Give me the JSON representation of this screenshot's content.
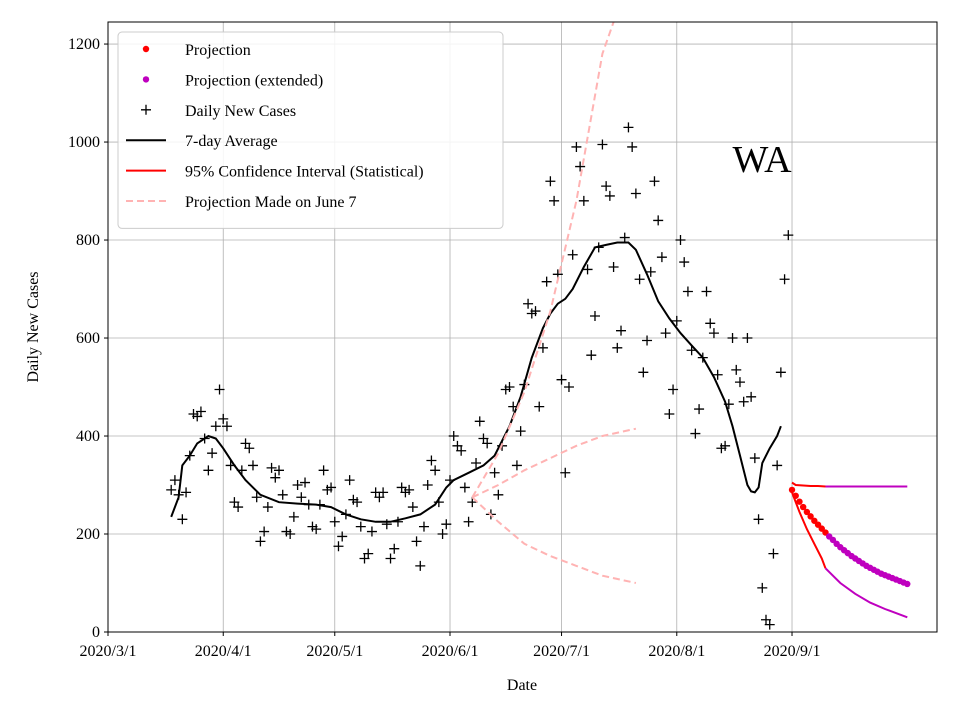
{
  "chart_data": {
    "type": "line",
    "xlabel": "Date",
    "ylabel": "Daily New Cases",
    "annotation": "WA",
    "xlim": [
      "2020-03-01",
      "2020-10-10"
    ],
    "xticks": [
      {
        "value": "2020-03-01",
        "label": "2020/3/1"
      },
      {
        "value": "2020-04-01",
        "label": "2020/4/1"
      },
      {
        "value": "2020-05-01",
        "label": "2020/5/1"
      },
      {
        "value": "2020-06-01",
        "label": "2020/6/1"
      },
      {
        "value": "2020-07-01",
        "label": "2020/7/1"
      },
      {
        "value": "2020-08-01",
        "label": "2020/8/1"
      },
      {
        "value": "2020-09-01",
        "label": "2020/9/1"
      }
    ],
    "ylim": [
      0,
      1245
    ],
    "yticks": [
      0,
      200,
      400,
      600,
      800,
      1000,
      1200
    ],
    "grid": true,
    "legend": "upper left",
    "series": [
      {
        "name": "Projection",
        "color": "#ff0000",
        "marker": "dot",
        "x": [
          "2020-09-01",
          "2020-09-02",
          "2020-09-03",
          "2020-09-04",
          "2020-09-05",
          "2020-09-06",
          "2020-09-07",
          "2020-09-08",
          "2020-09-09",
          "2020-09-10"
        ],
        "values": [
          290,
          278,
          266,
          255,
          245,
          236,
          227,
          219,
          211,
          203
        ]
      },
      {
        "name": "Projection (extended)",
        "color": "#bf00bf",
        "marker": "dot",
        "x": [
          "2020-09-11",
          "2020-09-12",
          "2020-09-13",
          "2020-09-14",
          "2020-09-15",
          "2020-09-16",
          "2020-09-17",
          "2020-09-18",
          "2020-09-19",
          "2020-09-20",
          "2020-09-21",
          "2020-09-22",
          "2020-09-23",
          "2020-09-24",
          "2020-09-25",
          "2020-09-26",
          "2020-09-27",
          "2020-09-28",
          "2020-09-29",
          "2020-09-30",
          "2020-10-01",
          "2020-10-02"
        ],
        "values": [
          195,
          188,
          180,
          173,
          167,
          161,
          155,
          150,
          145,
          140,
          135,
          131,
          127,
          123,
          119,
          116,
          113,
          110,
          107,
          104,
          101,
          98
        ]
      },
      {
        "name": "Daily New Cases",
        "color": "#000000",
        "marker": "plus",
        "x": [
          "2020-03-18",
          "2020-03-19",
          "2020-03-20",
          "2020-03-21",
          "2020-03-22",
          "2020-03-23",
          "2020-03-24",
          "2020-03-25",
          "2020-03-26",
          "2020-03-27",
          "2020-03-28",
          "2020-03-29",
          "2020-03-30",
          "2020-03-31",
          "2020-04-01",
          "2020-04-02",
          "2020-04-03",
          "2020-04-04",
          "2020-04-05",
          "2020-04-06",
          "2020-04-07",
          "2020-04-08",
          "2020-04-09",
          "2020-04-10",
          "2020-04-11",
          "2020-04-12",
          "2020-04-13",
          "2020-04-14",
          "2020-04-15",
          "2020-04-16",
          "2020-04-17",
          "2020-04-18",
          "2020-04-19",
          "2020-04-20",
          "2020-04-21",
          "2020-04-22",
          "2020-04-23",
          "2020-04-24",
          "2020-04-25",
          "2020-04-26",
          "2020-04-27",
          "2020-04-28",
          "2020-04-29",
          "2020-04-30",
          "2020-05-01",
          "2020-05-02",
          "2020-05-03",
          "2020-05-04",
          "2020-05-05",
          "2020-05-06",
          "2020-05-07",
          "2020-05-08",
          "2020-05-09",
          "2020-05-10",
          "2020-05-11",
          "2020-05-12",
          "2020-05-13",
          "2020-05-14",
          "2020-05-15",
          "2020-05-16",
          "2020-05-17",
          "2020-05-18",
          "2020-05-19",
          "2020-05-20",
          "2020-05-21",
          "2020-05-22",
          "2020-05-23",
          "2020-05-24",
          "2020-05-25",
          "2020-05-26",
          "2020-05-27",
          "2020-05-28",
          "2020-05-29",
          "2020-05-30",
          "2020-05-31",
          "2020-06-01",
          "2020-06-02",
          "2020-06-03",
          "2020-06-04",
          "2020-06-05",
          "2020-06-06",
          "2020-06-07",
          "2020-06-08",
          "2020-06-09",
          "2020-06-10",
          "2020-06-11",
          "2020-06-12",
          "2020-06-13",
          "2020-06-14",
          "2020-06-15",
          "2020-06-16",
          "2020-06-17",
          "2020-06-18",
          "2020-06-19",
          "2020-06-20",
          "2020-06-21",
          "2020-06-22",
          "2020-06-23",
          "2020-06-24",
          "2020-06-25",
          "2020-06-26",
          "2020-06-27",
          "2020-06-28",
          "2020-06-29",
          "2020-06-30",
          "2020-07-01",
          "2020-07-02",
          "2020-07-03",
          "2020-07-04",
          "2020-07-05",
          "2020-07-06",
          "2020-07-07",
          "2020-07-08",
          "2020-07-09",
          "2020-07-10",
          "2020-07-11",
          "2020-07-12",
          "2020-07-13",
          "2020-07-14",
          "2020-07-15",
          "2020-07-16",
          "2020-07-17",
          "2020-07-18",
          "2020-07-19",
          "2020-07-20",
          "2020-07-21",
          "2020-07-22",
          "2020-07-23",
          "2020-07-24",
          "2020-07-25",
          "2020-07-26",
          "2020-07-27",
          "2020-07-28",
          "2020-07-29",
          "2020-07-30",
          "2020-07-31",
          "2020-08-01",
          "2020-08-02",
          "2020-08-03",
          "2020-08-04",
          "2020-08-05",
          "2020-08-06",
          "2020-08-07",
          "2020-08-08",
          "2020-08-09",
          "2020-08-10",
          "2020-08-11",
          "2020-08-12",
          "2020-08-13",
          "2020-08-14",
          "2020-08-15",
          "2020-08-16",
          "2020-08-17",
          "2020-08-18",
          "2020-08-19",
          "2020-08-20",
          "2020-08-21",
          "2020-08-22",
          "2020-08-23",
          "2020-08-24",
          "2020-08-25",
          "2020-08-26",
          "2020-08-27",
          "2020-08-28",
          "2020-08-29",
          "2020-08-30",
          "2020-08-31"
        ],
        "values": [
          290,
          310,
          280,
          230,
          285,
          360,
          445,
          440,
          450,
          395,
          330,
          365,
          420,
          495,
          435,
          420,
          340,
          265,
          255,
          330,
          385,
          375,
          340,
          275,
          185,
          205,
          255,
          335,
          315,
          330,
          280,
          205,
          200,
          235,
          300,
          275,
          305,
          260,
          215,
          210,
          260,
          330,
          290,
          295,
          225,
          175,
          195,
          240,
          310,
          270,
          265,
          215,
          150,
          160,
          205,
          285,
          275,
          285,
          220,
          150,
          170,
          225,
          295,
          285,
          290,
          255,
          185,
          135,
          215,
          300,
          350,
          330,
          265,
          200,
          220,
          310,
          400,
          380,
          370,
          295,
          225,
          265,
          345,
          430,
          395,
          385,
          240,
          325,
          280,
          380,
          495,
          500,
          460,
          340,
          410,
          505,
          670,
          650,
          655,
          460,
          580,
          715,
          920,
          880,
          730,
          515,
          325,
          500,
          770,
          990,
          950,
          880,
          740,
          565,
          645,
          785,
          995,
          910,
          890,
          745,
          580,
          615,
          805,
          1030,
          990,
          895,
          720,
          530,
          595,
          735,
          920,
          840,
          765,
          610,
          445,
          495,
          635,
          800,
          755,
          695,
          575,
          405,
          455,
          560,
          695,
          630,
          610,
          525,
          375,
          380,
          465,
          600,
          535,
          510,
          470,
          600,
          480,
          355,
          230,
          90,
          25,
          15,
          160,
          340,
          530,
          720,
          810
        ]
      },
      {
        "name": "7-day Average",
        "color": "#000000",
        "linestyle": "solid",
        "x": [
          "2020-03-18",
          "2020-03-20",
          "2020-03-21",
          "2020-03-23",
          "2020-03-25",
          "2020-03-28",
          "2020-03-30",
          "2020-04-01",
          "2020-04-04",
          "2020-04-07",
          "2020-04-11",
          "2020-04-16",
          "2020-04-21",
          "2020-04-26",
          "2020-04-30",
          "2020-05-04",
          "2020-05-08",
          "2020-05-12",
          "2020-05-16",
          "2020-05-20",
          "2020-05-24",
          "2020-05-28",
          "2020-05-31",
          "2020-06-02",
          "2020-06-06",
          "2020-06-10",
          "2020-06-13",
          "2020-06-17",
          "2020-06-20",
          "2020-06-23",
          "2020-06-26",
          "2020-06-28",
          "2020-06-30",
          "2020-07-02",
          "2020-07-04",
          "2020-07-07",
          "2020-07-10",
          "2020-07-13",
          "2020-07-16",
          "2020-07-19",
          "2020-07-21",
          "2020-07-24",
          "2020-07-27",
          "2020-07-30",
          "2020-08-02",
          "2020-08-05",
          "2020-08-08",
          "2020-08-11",
          "2020-08-14",
          "2020-08-16",
          "2020-08-18",
          "2020-08-20",
          "2020-08-21",
          "2020-08-22",
          "2020-08-23",
          "2020-08-24",
          "2020-08-26",
          "2020-08-28",
          "2020-08-29"
        ],
        "values": [
          235,
          275,
          340,
          360,
          385,
          400,
          395,
          375,
          340,
          310,
          280,
          265,
          262,
          260,
          255,
          240,
          230,
          225,
          225,
          232,
          240,
          260,
          295,
          310,
          325,
          340,
          360,
          420,
          480,
          560,
          620,
          650,
          670,
          680,
          700,
          745,
          785,
          790,
          795,
          795,
          780,
          730,
          675,
          640,
          610,
          585,
          560,
          520,
          470,
          420,
          360,
          300,
          287,
          285,
          295,
          345,
          375,
          400,
          420
        ]
      },
      {
        "name": "95% Confidence Interval (Statistical)",
        "color": "#ff0000",
        "linestyle": "solid",
        "x": [
          "2020-09-01",
          "2020-09-02",
          "2020-09-04",
          "2020-09-06",
          "2020-09-08",
          "2020-09-10"
        ],
        "values": [
          305,
          300,
          299,
          298,
          298,
          297
        ]
      },
      {
        "color": "#ff0000",
        "linestyle": "solid",
        "x": [
          "2020-09-01",
          "2020-09-03",
          "2020-09-05",
          "2020-09-07",
          "2020-09-09",
          "2020-09-10"
        ],
        "values": [
          285,
          245,
          210,
          180,
          150,
          130
        ]
      },
      {
        "color": "#bf00bf",
        "linestyle": "solid",
        "x": [
          "2020-09-10",
          "2020-09-20",
          "2020-10-02"
        ],
        "values": [
          297,
          297,
          297
        ]
      },
      {
        "color": "#bf00bf",
        "linestyle": "solid",
        "x": [
          "2020-09-10",
          "2020-09-14",
          "2020-09-18",
          "2020-09-22",
          "2020-09-26",
          "2020-10-02"
        ],
        "values": [
          130,
          100,
          78,
          60,
          47,
          30
        ]
      },
      {
        "name": "Projection Made on June 7",
        "color": "#ffb3b3",
        "linestyle": "dashed",
        "x": [
          "2020-06-07",
          "2020-06-14",
          "2020-06-21",
          "2020-06-28",
          "2020-07-05",
          "2020-07-12",
          "2020-07-15"
        ],
        "values": [
          275,
          365,
          490,
          655,
          880,
          1180,
          1245
        ]
      },
      {
        "color": "#ffb3b3",
        "linestyle": "dashed",
        "x": [
          "2020-06-07",
          "2020-06-14",
          "2020-06-21",
          "2020-06-28",
          "2020-07-05",
          "2020-07-12",
          "2020-07-21"
        ],
        "values": [
          275,
          300,
          330,
          355,
          380,
          400,
          415
        ]
      },
      {
        "color": "#ffb3b3",
        "linestyle": "dashed",
        "x": [
          "2020-06-07",
          "2020-06-14",
          "2020-06-21",
          "2020-06-28",
          "2020-07-05",
          "2020-07-12",
          "2020-07-21"
        ],
        "values": [
          275,
          225,
          180,
          155,
          135,
          115,
          100
        ]
      }
    ]
  }
}
